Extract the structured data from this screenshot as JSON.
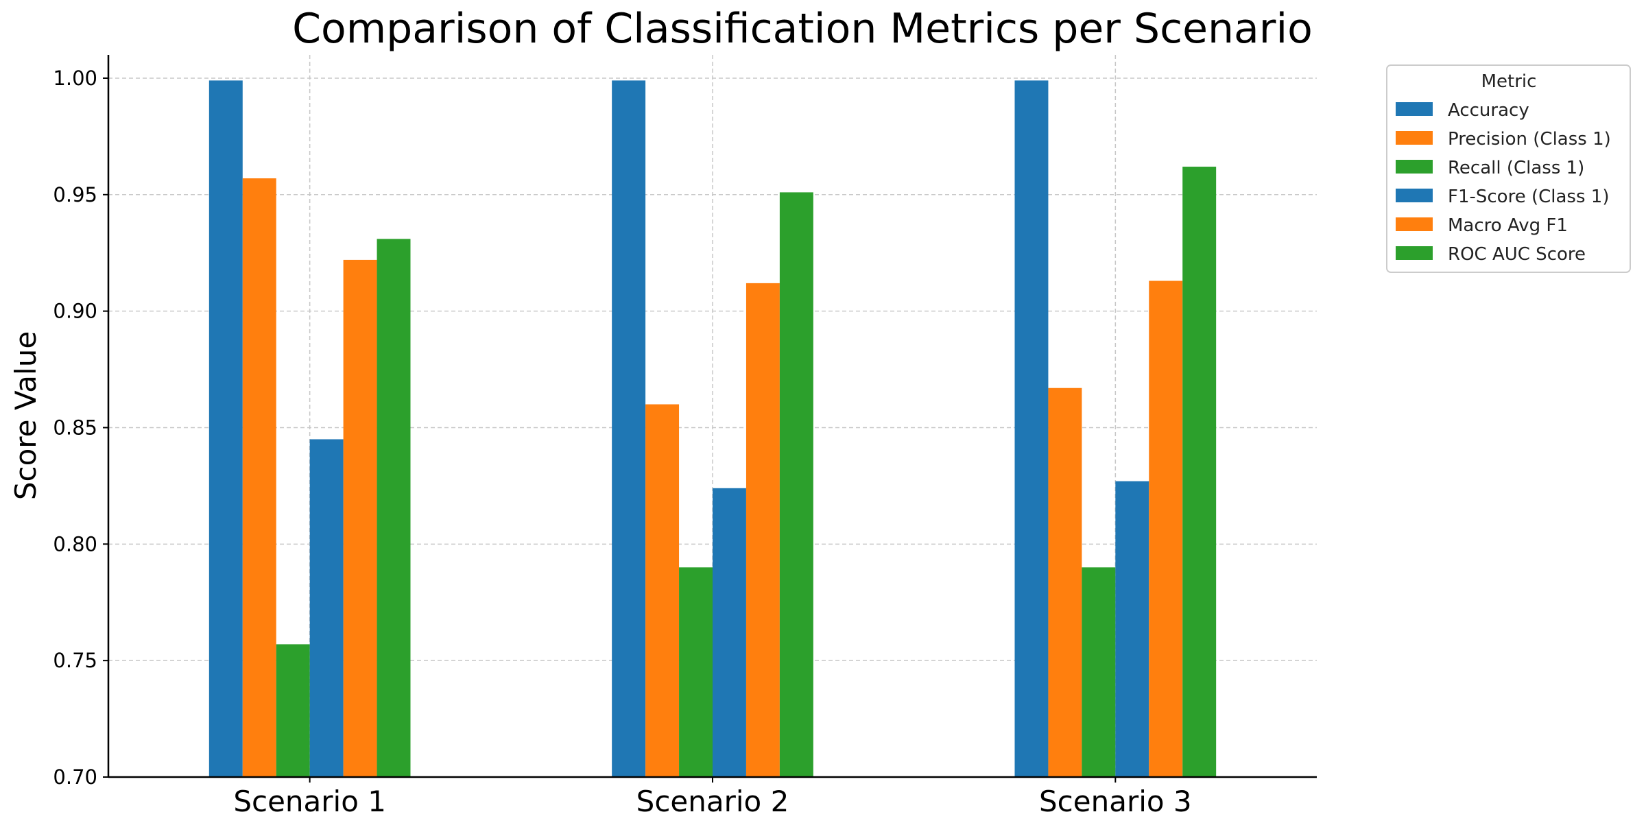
{
  "chart_data": {
    "type": "bar",
    "title": "Comparison of Classification Metrics per Scenario",
    "xlabel": "",
    "ylabel": "Score Value",
    "ylim": [
      0.7,
      1.01
    ],
    "yticks": [
      "0.70",
      "0.75",
      "0.80",
      "0.85",
      "0.90",
      "0.95",
      "1.00"
    ],
    "ytick_values": [
      0.7,
      0.75,
      0.8,
      0.85,
      0.9,
      0.95,
      1.0
    ],
    "grid": true,
    "legend_placement": "outside-top-right",
    "legend_title": "Metric",
    "categories": [
      "Scenario 1",
      "Scenario 2",
      "Scenario 3"
    ],
    "series": [
      {
        "name": "Accuracy",
        "color": "#1f77b4",
        "values": [
          0.999,
          0.999,
          0.999
        ]
      },
      {
        "name": "Precision (Class 1)",
        "color": "#ff7f0e",
        "values": [
          0.957,
          0.86,
          0.867
        ]
      },
      {
        "name": "Recall (Class 1)",
        "color": "#2ca02c",
        "values": [
          0.757,
          0.79,
          0.79
        ]
      },
      {
        "name": "F1-Score (Class 1)",
        "color": "#1f77b4",
        "values": [
          0.845,
          0.824,
          0.827
        ]
      },
      {
        "name": "Macro Avg F1",
        "color": "#ff7f0e",
        "values": [
          0.922,
          0.912,
          0.913
        ]
      },
      {
        "name": "ROC AUC Score",
        "color": "#2ca02c",
        "values": [
          0.931,
          0.951,
          0.962
        ]
      }
    ]
  }
}
